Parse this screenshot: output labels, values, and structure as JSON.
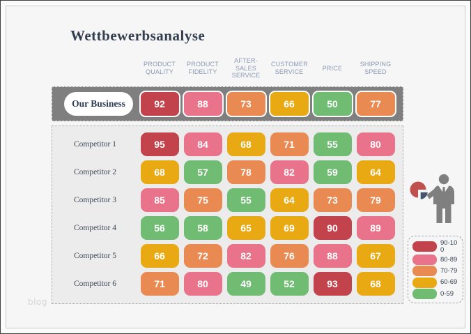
{
  "title": "Wettbewerbsanalyse",
  "watermark": "blog",
  "chart_data": {
    "type": "heatmap",
    "title": "Wettbewerbsanalyse",
    "columns": [
      "PRODUCT QUALITY",
      "PRODUCT FIDELITY",
      "AFTER-SALES SERVICE",
      "CUSTOMER SERVICE",
      "PRICE",
      "SHIPPING SPEED"
    ],
    "rows": [
      {
        "label": "Our Business",
        "values": [
          92,
          88,
          73,
          66,
          50,
          77
        ],
        "highlight": true
      },
      {
        "label": "Competitor 1",
        "values": [
          95,
          84,
          68,
          71,
          55,
          80
        ]
      },
      {
        "label": "Competitor 2",
        "values": [
          68,
          57,
          78,
          82,
          59,
          64
        ]
      },
      {
        "label": "Competitor 3",
        "values": [
          85,
          75,
          55,
          64,
          73,
          79
        ]
      },
      {
        "label": "Competitor 4",
        "values": [
          56,
          58,
          65,
          69,
          90,
          89
        ]
      },
      {
        "label": "Competitor 5",
        "values": [
          66,
          72,
          82,
          76,
          88,
          67
        ]
      },
      {
        "label": "Competitor 6",
        "values": [
          71,
          80,
          49,
          52,
          93,
          68
        ]
      }
    ],
    "legend": [
      {
        "label": "90-100",
        "min": 90,
        "color": "#C2434B"
      },
      {
        "label": "80-89",
        "min": 80,
        "color": "#E9738A"
      },
      {
        "label": "70-79",
        "min": 70,
        "color": "#EA8A53"
      },
      {
        "label": "60-69",
        "min": 60,
        "color": "#E9A912"
      },
      {
        "label": "0-59",
        "min": 0,
        "color": "#6FBC72"
      }
    ],
    "legend_position": "bottom-right",
    "colors": {
      "band_background": "#7F7F7F",
      "panel_background": "#ECECEC",
      "header_text": "#8A99B3",
      "title_text": "#333F50",
      "pie_icon_main": "#C0504D",
      "pie_icon_slice": "#44546A",
      "person_icon": "#7F7F7F"
    }
  }
}
